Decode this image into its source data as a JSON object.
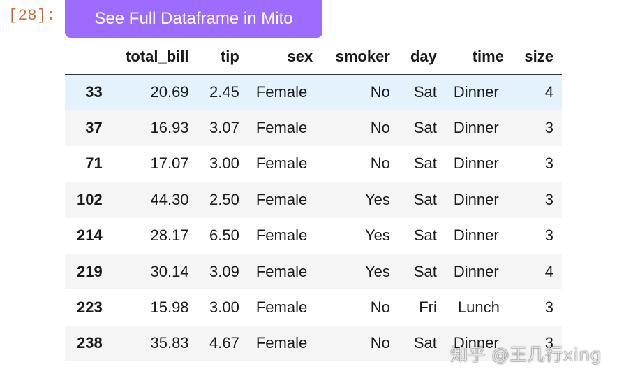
{
  "cell": {
    "prompt": "[28]:"
  },
  "mito": {
    "button_label": "See Full Dataframe in Mito",
    "button_color": "#9d6cff"
  },
  "table": {
    "index_header": "",
    "columns": [
      "total_bill",
      "tip",
      "sex",
      "smoker",
      "day",
      "time",
      "size"
    ],
    "rows": [
      {
        "index": "33",
        "cells": [
          "20.69",
          "2.45",
          "Female",
          "No",
          "Sat",
          "Dinner",
          "4"
        ]
      },
      {
        "index": "37",
        "cells": [
          "16.93",
          "3.07",
          "Female",
          "No",
          "Sat",
          "Dinner",
          "3"
        ]
      },
      {
        "index": "71",
        "cells": [
          "17.07",
          "3.00",
          "Female",
          "No",
          "Sat",
          "Dinner",
          "3"
        ]
      },
      {
        "index": "102",
        "cells": [
          "44.30",
          "2.50",
          "Female",
          "Yes",
          "Sat",
          "Dinner",
          "3"
        ]
      },
      {
        "index": "214",
        "cells": [
          "28.17",
          "6.50",
          "Female",
          "Yes",
          "Sat",
          "Dinner",
          "3"
        ]
      },
      {
        "index": "219",
        "cells": [
          "30.14",
          "3.09",
          "Female",
          "Yes",
          "Sat",
          "Dinner",
          "4"
        ]
      },
      {
        "index": "223",
        "cells": [
          "15.98",
          "3.00",
          "Female",
          "No",
          "Fri",
          "Lunch",
          "3"
        ]
      },
      {
        "index": "238",
        "cells": [
          "35.83",
          "4.67",
          "Female",
          "No",
          "Sat",
          "Dinner",
          "3"
        ]
      }
    ],
    "hover_row_color": "#e3f2fc",
    "stripe_color": "#f5f5f5"
  },
  "watermark": {
    "text": "知乎 @王几行xing"
  }
}
